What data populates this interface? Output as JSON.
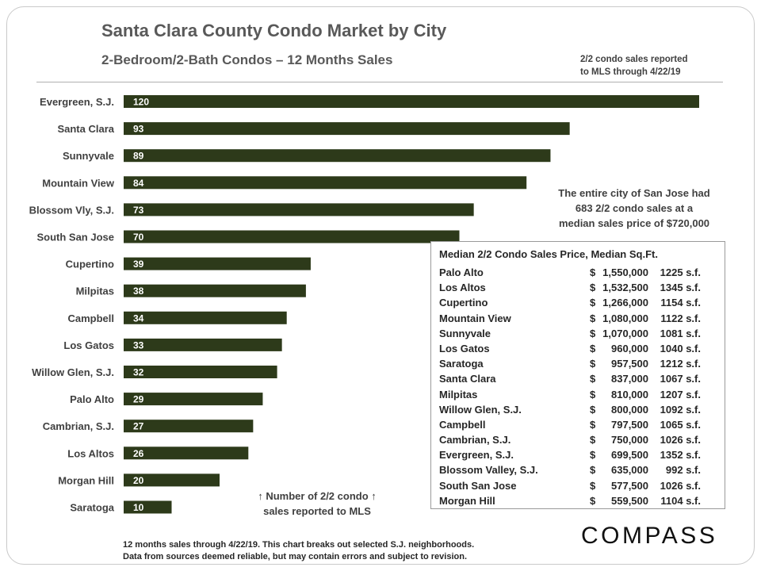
{
  "header": {
    "title": "Santa Clara County Condo Market by City",
    "subtitle": "2-Bedroom/2-Bath  Condos – 12 Months  Sales",
    "note_line1": "2/2 condo sales reported",
    "note_line2": "to MLS through 4/22/19"
  },
  "colors": {
    "bar": "#2d3a1a",
    "text": "#404040",
    "bar_label": "#ffffff"
  },
  "chart_data": {
    "type": "bar",
    "orientation": "horizontal",
    "title": "Santa Clara County Condo Market by City",
    "subtitle": "2-Bedroom/2-Bath  Condos – 12 Months  Sales",
    "xlabel": "Number of 2/2 condo sales reported to MLS",
    "xlim": [
      0,
      120
    ],
    "categories": [
      "Evergreen, S.J.",
      "Santa Clara",
      "Sunnyvale",
      "Mountain View",
      "Blossom Vly, S.J.",
      "South San Jose",
      "Cupertino",
      "Milpitas",
      "Campbell",
      "Los Gatos",
      "Willow Glen, S.J.",
      "Palo Alto",
      "Cambrian, S.J.",
      "Los Altos",
      "Morgan Hill",
      "Saratoga"
    ],
    "values": [
      120,
      93,
      89,
      84,
      73,
      70,
      39,
      38,
      34,
      33,
      32,
      29,
      27,
      26,
      20,
      10
    ]
  },
  "callout": {
    "line1": "The entire city of San Jose had",
    "line2": "683 2/2 condo sales at a",
    "line3": "median sales price of $720,000"
  },
  "price_table": {
    "title": "Median 2/2 Condo Sales Price, Median Sq.Ft.",
    "rows": [
      {
        "city": "Palo Alto",
        "dollar": "$",
        "price": "1,550,000",
        "sqft": "1225 s.f."
      },
      {
        "city": "Los Altos",
        "dollar": "$",
        "price": "1,532,500",
        "sqft": "1345 s.f."
      },
      {
        "city": "Cupertino",
        "dollar": "$",
        "price": "1,266,000",
        "sqft": "1154 s.f."
      },
      {
        "city": "Mountain View",
        "dollar": "$",
        "price": "1,080,000",
        "sqft": "1122 s.f."
      },
      {
        "city": "Sunnyvale",
        "dollar": "$",
        "price": "1,070,000",
        "sqft": "1081 s.f."
      },
      {
        "city": "Los Gatos",
        "dollar": "$",
        "price": "960,000",
        "sqft": "1040 s.f."
      },
      {
        "city": "Saratoga",
        "dollar": "$",
        "price": "957,500",
        "sqft": "1212 s.f."
      },
      {
        "city": "Santa Clara",
        "dollar": "$",
        "price": "837,000",
        "sqft": "1067 s.f."
      },
      {
        "city": "Milpitas",
        "dollar": "$",
        "price": "810,000",
        "sqft": "1207 s.f."
      },
      {
        "city": "Willow Glen, S.J.",
        "dollar": "$",
        "price": "800,000",
        "sqft": "1092 s.f."
      },
      {
        "city": "Campbell",
        "dollar": "$",
        "price": "797,500",
        "sqft": "1065 s.f."
      },
      {
        "city": "Cambrian, S.J.",
        "dollar": "$",
        "price": "750,000",
        "sqft": "1026 s.f."
      },
      {
        "city": "Evergreen, S.J.",
        "dollar": "$",
        "price": "699,500",
        "sqft": "1352 s.f."
      },
      {
        "city": "Blossom Valley, S.J.",
        "dollar": "$",
        "price": "635,000",
        "sqft": "992 s.f."
      },
      {
        "city": "South San Jose",
        "dollar": "$",
        "price": "577,500",
        "sqft": "1026 s.f."
      },
      {
        "city": "Morgan Hill",
        "dollar": "$",
        "price": "559,500",
        "sqft": "1104 s.f."
      }
    ]
  },
  "axis_note": {
    "line1": "↑ Number of 2/2 condo ↑",
    "line2": "sales reported to MLS"
  },
  "footer": {
    "line1": "12 months sales through 4/22/19. This chart breaks out selected S.J. neighborhoods.",
    "line2": "Data from sources deemed reliable, but may contain errors and subject to revision."
  },
  "logo": {
    "text": "COMPASS"
  }
}
